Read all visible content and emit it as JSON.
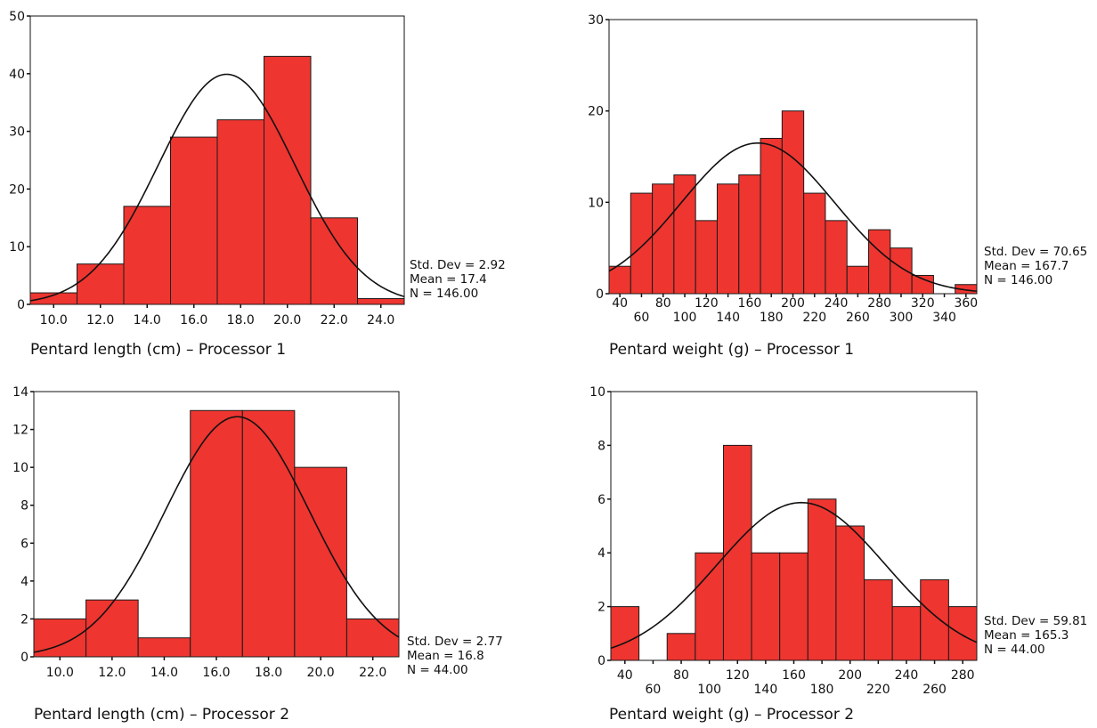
{
  "chart_data": [
    {
      "type": "bar",
      "title": "Pentard length (cm) – Processor 1",
      "bin_edges": [
        9.0,
        11.0,
        13.0,
        15.0,
        17.0,
        19.0,
        21.0,
        23.0,
        25.0
      ],
      "values": [
        2,
        7,
        17,
        29,
        32,
        43,
        15,
        1
      ],
      "xlim": [
        9.0,
        25.0
      ],
      "ylim": [
        0,
        50
      ],
      "y_ticks": [
        0,
        10,
        20,
        30,
        40,
        50
      ],
      "x_ticks": [
        {
          "value": 10.0,
          "label": "10.0",
          "row": 0
        },
        {
          "value": 12.0,
          "label": "12.0",
          "row": 0
        },
        {
          "value": 14.0,
          "label": "14.0",
          "row": 0
        },
        {
          "value": 16.0,
          "label": "16.0",
          "row": 0
        },
        {
          "value": 18.0,
          "label": "18.0",
          "row": 0
        },
        {
          "value": 20.0,
          "label": "20.0",
          "row": 0
        },
        {
          "value": 22.0,
          "label": "22.0",
          "row": 0
        },
        {
          "value": 24.0,
          "label": "24.0",
          "row": 0
        }
      ],
      "stats": [
        "Std. Dev = 2.92",
        "Mean = 17.4",
        "N = 146.00"
      ],
      "normal_curve": {
        "mean": 17.4,
        "sd": 2.92,
        "n": 146,
        "bin_width": 2
      }
    },
    {
      "type": "bar",
      "title": "Pentard weight (g) – Processor 1",
      "bin_edges": [
        30,
        50,
        70,
        90,
        110,
        130,
        150,
        170,
        190,
        210,
        230,
        250,
        270,
        290,
        310,
        330,
        350,
        370
      ],
      "values": [
        3,
        11,
        12,
        13,
        8,
        12,
        13,
        17,
        20,
        11,
        8,
        3,
        7,
        5,
        2,
        0,
        1
      ],
      "xlim": [
        30,
        370
      ],
      "ylim": [
        0,
        30
      ],
      "y_ticks": [
        0,
        10,
        20,
        30
      ],
      "x_ticks": [
        {
          "value": 40,
          "label": "40",
          "row": 0
        },
        {
          "value": 60,
          "label": "60",
          "row": 1
        },
        {
          "value": 80,
          "label": "80",
          "row": 0
        },
        {
          "value": 100,
          "label": "100",
          "row": 1
        },
        {
          "value": 120,
          "label": "120",
          "row": 0
        },
        {
          "value": 140,
          "label": "140",
          "row": 1
        },
        {
          "value": 160,
          "label": "160",
          "row": 0
        },
        {
          "value": 180,
          "label": "180",
          "row": 1
        },
        {
          "value": 200,
          "label": "200",
          "row": 0
        },
        {
          "value": 220,
          "label": "220",
          "row": 1
        },
        {
          "value": 240,
          "label": "240",
          "row": 0
        },
        {
          "value": 260,
          "label": "260",
          "row": 1
        },
        {
          "value": 280,
          "label": "280",
          "row": 0
        },
        {
          "value": 300,
          "label": "300",
          "row": 1
        },
        {
          "value": 320,
          "label": "320",
          "row": 0
        },
        {
          "value": 340,
          "label": "340",
          "row": 1
        },
        {
          "value": 360,
          "label": "360",
          "row": 0
        }
      ],
      "stats": [
        "Std. Dev = 70.65",
        "Mean = 167.7",
        "N = 146.00"
      ],
      "normal_curve": {
        "mean": 167.7,
        "sd": 70.65,
        "n": 146,
        "bin_width": 20
      }
    },
    {
      "type": "bar",
      "title": "Pentard length (cm) – Processor 2",
      "bin_edges": [
        9.0,
        11.0,
        13.0,
        15.0,
        17.0,
        19.0,
        21.0,
        23.0
      ],
      "values": [
        2,
        3,
        1,
        13,
        13,
        10,
        2
      ],
      "xlim": [
        9.0,
        23.0
      ],
      "ylim": [
        0,
        14
      ],
      "y_ticks": [
        0,
        2,
        4,
        6,
        8,
        10,
        12,
        14
      ],
      "x_ticks": [
        {
          "value": 10.0,
          "label": "10.0",
          "row": 0
        },
        {
          "value": 12.0,
          "label": "12.0",
          "row": 0
        },
        {
          "value": 14.0,
          "label": "14.0",
          "row": 0
        },
        {
          "value": 16.0,
          "label": "16.0",
          "row": 0
        },
        {
          "value": 18.0,
          "label": "18.0",
          "row": 0
        },
        {
          "value": 20.0,
          "label": "20.0",
          "row": 0
        },
        {
          "value": 22.0,
          "label": "22.0",
          "row": 0
        }
      ],
      "stats": [
        "Std. Dev = 2.77",
        "Mean = 16.8",
        "N = 44.00"
      ],
      "normal_curve": {
        "mean": 16.8,
        "sd": 2.77,
        "n": 44,
        "bin_width": 2
      }
    },
    {
      "type": "bar",
      "title": "Pentard weight (g) – Processor 2",
      "bin_edges": [
        30,
        50,
        70,
        90,
        110,
        130,
        150,
        170,
        190,
        210,
        230,
        250,
        270,
        290
      ],
      "values": [
        2,
        0,
        1,
        4,
        8,
        4,
        4,
        6,
        5,
        3,
        2,
        3,
        2
      ],
      "xlim": [
        30,
        290
      ],
      "ylim": [
        0,
        10
      ],
      "y_ticks": [
        0,
        2,
        4,
        6,
        8,
        10
      ],
      "x_ticks": [
        {
          "value": 40,
          "label": "40",
          "row": 0
        },
        {
          "value": 60,
          "label": "60",
          "row": 1
        },
        {
          "value": 80,
          "label": "80",
          "row": 0
        },
        {
          "value": 100,
          "label": "100",
          "row": 1
        },
        {
          "value": 120,
          "label": "120",
          "row": 0
        },
        {
          "value": 140,
          "label": "140",
          "row": 1
        },
        {
          "value": 160,
          "label": "160",
          "row": 0
        },
        {
          "value": 180,
          "label": "180",
          "row": 1
        },
        {
          "value": 200,
          "label": "200",
          "row": 0
        },
        {
          "value": 220,
          "label": "220",
          "row": 1
        },
        {
          "value": 240,
          "label": "240",
          "row": 0
        },
        {
          "value": 260,
          "label": "260",
          "row": 1
        },
        {
          "value": 280,
          "label": "280",
          "row": 0
        }
      ],
      "stats": [
        "Std. Dev = 59.81",
        "Mean = 165.3",
        "N = 44.00"
      ],
      "normal_curve": {
        "mean": 165.3,
        "sd": 59.81,
        "n": 44,
        "bin_width": 20
      }
    }
  ],
  "colors": {
    "bar_fill": "#ee3530",
    "bar_stroke": "#1a1a1a",
    "curve": "#111111",
    "axis": "#111111"
  }
}
